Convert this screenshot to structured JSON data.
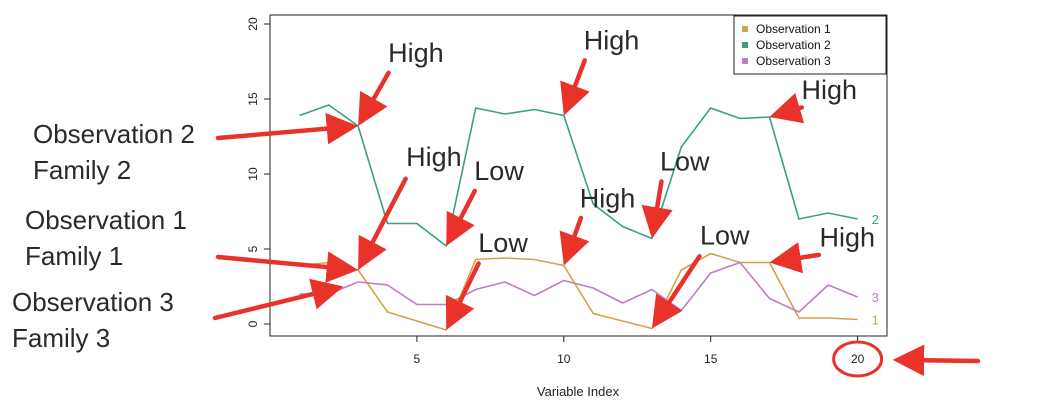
{
  "chart_data": {
    "type": "line",
    "title": "",
    "xlabel": "Variable Index",
    "ylabel": "",
    "xlim": [
      0,
      21
    ],
    "ylim": [
      -0.8,
      20.6
    ],
    "x_ticks": [
      5,
      10,
      15,
      20
    ],
    "y_ticks": [
      0,
      5,
      10,
      15,
      20
    ],
    "grid": false,
    "legend_position": "top-right",
    "x": [
      1,
      2,
      3,
      4,
      5,
      6,
      7,
      8,
      9,
      10,
      11,
      12,
      13,
      14,
      15,
      16,
      17,
      18,
      19,
      20
    ],
    "series": [
      {
        "name": "Observation 1",
        "end_label": "1",
        "color": "#D4A24C",
        "values": [
          3.9,
          4.1,
          3.6,
          0.8,
          0.2,
          -0.4,
          4.3,
          4.4,
          4.3,
          3.9,
          0.7,
          0.2,
          -0.3,
          3.6,
          4.7,
          4.1,
          4.1,
          0.4,
          0.4,
          0.3
        ]
      },
      {
        "name": "Observation 2",
        "end_label": "2",
        "color": "#3A9E8A",
        "values": [
          13.9,
          14.6,
          13.2,
          6.7,
          6.7,
          5.2,
          14.4,
          14.0,
          14.3,
          13.9,
          8.0,
          6.5,
          5.7,
          11.8,
          14.4,
          13.7,
          13.8,
          7.0,
          7.4,
          7.0
        ]
      },
      {
        "name": "Observation 3",
        "end_label": "3",
        "color": "#BD7FC0",
        "values": [
          2.0,
          2.0,
          2.8,
          2.6,
          1.3,
          1.3,
          2.3,
          2.8,
          1.9,
          2.9,
          2.4,
          1.4,
          2.3,
          0.9,
          3.4,
          4.1,
          1.7,
          0.8,
          2.6,
          1.8
        ]
      }
    ],
    "annotations": [
      {
        "text": "High",
        "target": [
          3,
          13.2
        ]
      },
      {
        "text": "High",
        "target": [
          10,
          13.9
        ]
      },
      {
        "text": "High",
        "target": [
          17,
          13.8
        ]
      },
      {
        "text": "High",
        "target": [
          3,
          3.6
        ]
      },
      {
        "text": "Low",
        "target": [
          6,
          5.2
        ]
      },
      {
        "text": "High",
        "target": [
          10,
          3.9
        ]
      },
      {
        "text": "Low",
        "target": [
          13,
          5.7
        ]
      },
      {
        "text": "Low",
        "target": [
          6,
          -0.4
        ]
      },
      {
        "text": "Low",
        "target": [
          13,
          -0.3
        ]
      },
      {
        "text": "High",
        "target": [
          17,
          4.1
        ]
      }
    ],
    "side_labels": [
      {
        "line1": "Observation 2",
        "line2": "Family 2",
        "target": [
          3,
          13.2
        ]
      },
      {
        "line1": "Observation 1",
        "line2": "Family 1",
        "target": [
          3,
          3.6
        ]
      },
      {
        "line1": "Observation 3",
        "line2": "Family 3",
        "target": [
          2.5,
          2.5
        ]
      }
    ],
    "highlight": {
      "tick": 20,
      "shape": "circle",
      "color": "#E8322A"
    },
    "arrow_color": "#E8322A"
  }
}
